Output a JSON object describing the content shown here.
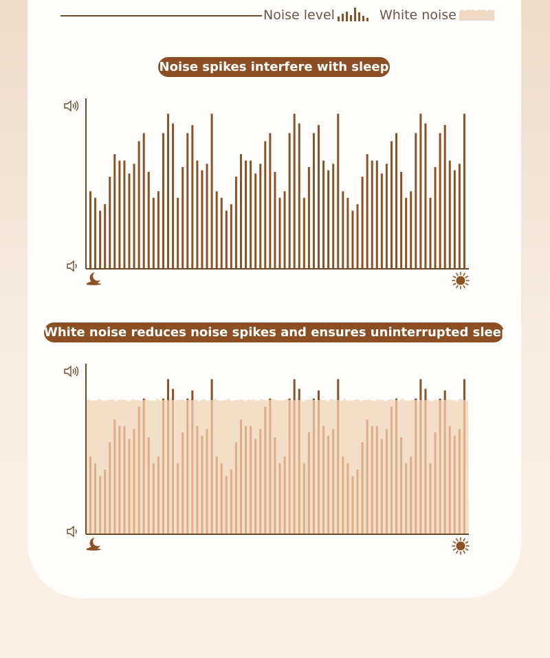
{
  "legend": {
    "noise_label": "Noise level",
    "white_label": "White noise"
  },
  "chart_data": [
    {
      "type": "bar",
      "title": "Noise spikes interfere with sleep",
      "x_start_icon": "moon-icon",
      "x_end_icon": "sun-icon",
      "y_top_icon": "speaker-loud-icon",
      "y_bottom_icon": "speaker-quiet-icon",
      "ylim": [
        0,
        100
      ],
      "grid": false,
      "series": [
        {
          "name": "Noise level",
          "color": "#8b5225",
          "values": [
            48,
            44,
            36,
            40,
            57,
            71,
            67,
            67,
            59,
            65,
            79,
            84,
            60,
            44,
            48,
            84,
            96,
            90,
            44,
            63,
            84,
            89,
            67,
            61,
            65,
            96,
            48,
            44,
            36,
            40,
            57,
            71,
            67,
            67,
            59,
            65,
            79,
            84,
            60,
            44,
            48,
            84,
            96,
            90,
            44,
            63,
            84,
            89,
            67,
            61,
            65,
            96,
            48,
            44,
            36,
            40,
            57,
            71,
            67,
            67,
            59,
            65,
            79,
            84,
            60,
            44,
            48,
            84,
            96,
            90,
            44,
            63,
            84,
            89,
            67,
            61,
            65,
            96
          ]
        }
      ]
    },
    {
      "type": "bar",
      "title": "White noise reduces noise spikes and ensures uninterrupted sleep",
      "x_start_icon": "moon-icon",
      "x_end_icon": "sun-icon",
      "y_top_icon": "speaker-loud-icon",
      "y_bottom_icon": "speaker-quiet-icon",
      "ylim": [
        0,
        100
      ],
      "grid": false,
      "white_noise_level": 83,
      "series": [
        {
          "name": "Noise level",
          "color": "#8b5225",
          "values": [
            48,
            44,
            36,
            40,
            57,
            71,
            67,
            67,
            59,
            65,
            79,
            84,
            60,
            44,
            48,
            84,
            96,
            90,
            44,
            63,
            84,
            89,
            67,
            61,
            65,
            96,
            48,
            44,
            36,
            40,
            57,
            71,
            67,
            67,
            59,
            65,
            79,
            84,
            60,
            44,
            48,
            84,
            96,
            90,
            44,
            63,
            84,
            89,
            67,
            61,
            65,
            96,
            48,
            44,
            36,
            40,
            57,
            71,
            67,
            67,
            59,
            65,
            79,
            84,
            60,
            44,
            48,
            84,
            96,
            90,
            44,
            63,
            84,
            89,
            67,
            61,
            65,
            96
          ]
        },
        {
          "name": "White noise",
          "color": "#f1dcc4"
        }
      ]
    }
  ],
  "colors": {
    "accent": "#8b4f23",
    "bar": "#8b5225",
    "bar_masked": "#deae88",
    "white_noise_fill": "#f3dec7",
    "axis": "#6b4a2b"
  }
}
